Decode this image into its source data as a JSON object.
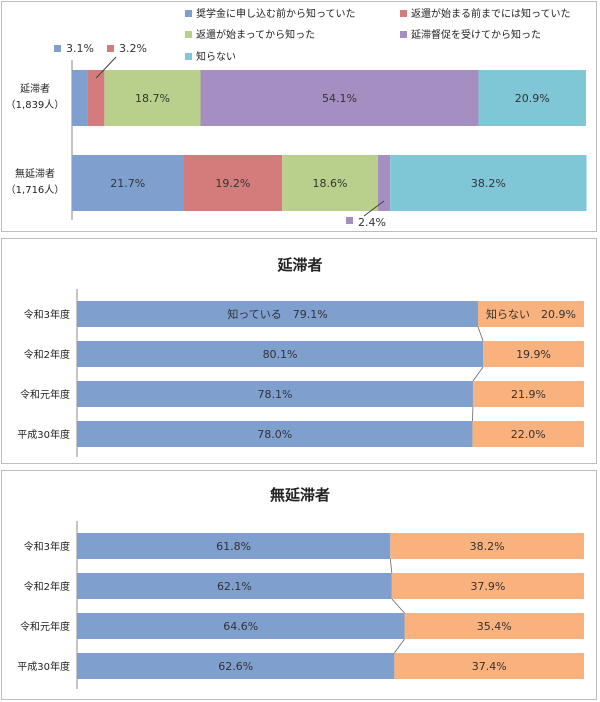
{
  "chart_data": [
    {
      "type": "bar",
      "orientation": "horizontal",
      "stacked": "100%",
      "legend": [
        "奨学金に申し込む前から知っていた",
        "返還が始まる前までには知っていた",
        "返還が始まってから知った",
        "延滞督促を受けてから知った",
        "知らない"
      ],
      "categories": [
        {
          "name": "延滞者",
          "count": "（1,839人）"
        },
        {
          "name": "無延滞者",
          "count": "（1,716人）"
        }
      ],
      "series": [
        {
          "name": "奨学金に申し込む前から知っていた",
          "values": [
            3.1,
            21.7
          ]
        },
        {
          "name": "返還が始まる前までには知っていた",
          "values": [
            3.2,
            19.2
          ]
        },
        {
          "name": "返還が始まってから知った",
          "values": [
            18.7,
            18.6
          ]
        },
        {
          "name": "延滞督促を受けてから知った",
          "values": [
            54.1,
            2.4
          ]
        },
        {
          "name": "知らない",
          "values": [
            20.9,
            38.2
          ]
        }
      ],
      "labels": [
        [
          "3.1%",
          "3.2%",
          "18.7%",
          "54.1%",
          "20.9%"
        ],
        [
          "21.7%",
          "19.2%",
          "18.6%",
          "2.4%",
          "38.2%"
        ]
      ],
      "xlim": [
        0,
        100
      ]
    },
    {
      "type": "bar",
      "orientation": "horizontal",
      "stacked": "100%",
      "title": "延滞者",
      "categories": [
        "令和3年度",
        "令和2年度",
        "令和元年度",
        "平成30年度"
      ],
      "series": [
        {
          "name": "知っている",
          "values": [
            79.1,
            80.1,
            78.1,
            78.0
          ]
        },
        {
          "name": "知らない",
          "values": [
            20.9,
            19.9,
            21.9,
            22.0
          ]
        }
      ],
      "labels": [
        [
          "知っている　79.1%",
          "知らない　20.9%"
        ],
        [
          "80.1%",
          "19.9%"
        ],
        [
          "78.1%",
          "21.9%"
        ],
        [
          "78.0%",
          "22.0%"
        ]
      ],
      "xlim": [
        0,
        100
      ]
    },
    {
      "type": "bar",
      "orientation": "horizontal",
      "stacked": "100%",
      "title": "無延滞者",
      "categories": [
        "令和3年度",
        "令和2年度",
        "令和元年度",
        "平成30年度"
      ],
      "series": [
        {
          "name": "知っている",
          "values": [
            61.8,
            62.1,
            64.6,
            62.6
          ]
        },
        {
          "name": "知らない",
          "values": [
            38.2,
            37.9,
            35.4,
            37.4
          ]
        }
      ],
      "labels": [
        [
          "61.8%",
          "38.2%"
        ],
        [
          "62.1%",
          "37.9%"
        ],
        [
          "64.6%",
          "35.4%"
        ],
        [
          "62.6%",
          "37.4%"
        ]
      ],
      "xlim": [
        0,
        100
      ]
    }
  ],
  "colors": {
    "blue": "#7f9fcf",
    "red": "#d47c7b",
    "green": "#b9d08c",
    "purple": "#a58ec1",
    "cyan": "#7fc6d7",
    "orange": "#f9b27e"
  }
}
